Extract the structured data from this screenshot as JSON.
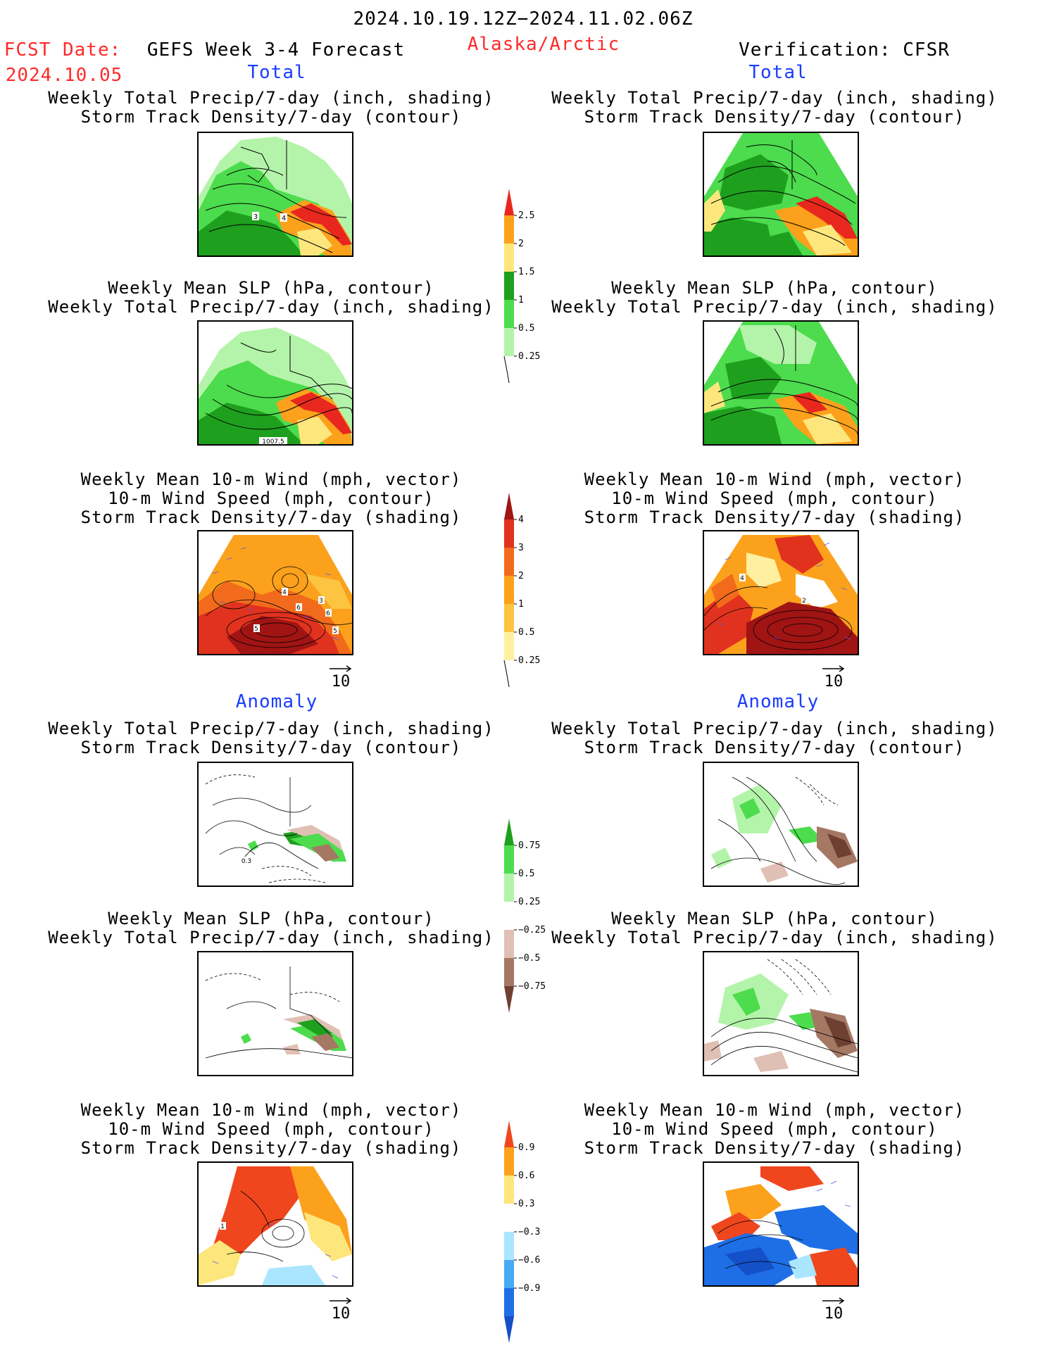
{
  "header": {
    "date_range": "2024.10.19.12Z−2024.11.02.06Z",
    "fcst_label": "FCST Date:",
    "fcst_date": "2024.10.05",
    "product": "GEFS Week 3-4 Forecast",
    "region": "Alaska/Arctic",
    "verification": "Verification: CFSR"
  },
  "sections": {
    "total": "Total",
    "anomaly": "Anomaly"
  },
  "titles": {
    "precip_storm": [
      "Weekly Total Precip/7-day (inch, shading)",
      "Storm Track Density/7-day (contour)"
    ],
    "slp_precip": [
      "Weekly Mean SLP (hPa, contour)",
      "Weekly Total Precip/7-day (inch, shading)"
    ],
    "wind_storm": [
      "Weekly Mean 10-m Wind (mph, vector)",
      "10-m Wind Speed (mph, contour)",
      "Storm Track Density/7-day (shading)"
    ]
  },
  "vector_ref": "10",
  "map_labels": {
    "fcst_precip_storm": [
      "3",
      "4"
    ],
    "fcst_slp_precip": [
      "1007.5"
    ],
    "fcst_wind": [
      "4",
      "6",
      "5",
      "3",
      "6",
      "5"
    ],
    "verif_wind": [
      "4",
      "2"
    ],
    "anom_precip_storm": [
      "0.3"
    ],
    "anom_wind": [
      "1"
    ]
  },
  "colorbars": {
    "precip_total": {
      "labels": [
        "2.5",
        "2",
        "1.5",
        "1",
        "0.5",
        "0.25"
      ],
      "colors": [
        "#e8281e",
        "#fca11c",
        "#fde77d",
        "#1ea01e",
        "#4ddc4d",
        "#b4f4aa"
      ]
    },
    "storm_total": {
      "labels": [
        "4",
        "3",
        "2",
        "1",
        "0.5",
        "0.25"
      ],
      "colors": [
        "#a01414",
        "#e0321e",
        "#f26b1c",
        "#fca11c",
        "#fdc441",
        "#fff0a0"
      ]
    },
    "precip_anom": {
      "labels": [
        "0.75",
        "0.5",
        "0.25",
        "−0.25",
        "−0.5",
        "−0.75"
      ],
      "colors": [
        "#1ea01e",
        "#4ddc4d",
        "#b4f4aa",
        "#ffffff",
        "#e0c0b4",
        "#a57864",
        "#6e4032"
      ]
    },
    "storm_anom": {
      "labels": [
        "0.9",
        "0.6",
        "0.3",
        "−0.3",
        "−0.6",
        "−0.9"
      ],
      "colors": [
        "#f0461e",
        "#fca11c",
        "#fde77d",
        "#ffffff",
        "#aae6ff",
        "#46aaf5",
        "#1e6ee6",
        "#1450c8"
      ]
    }
  }
}
